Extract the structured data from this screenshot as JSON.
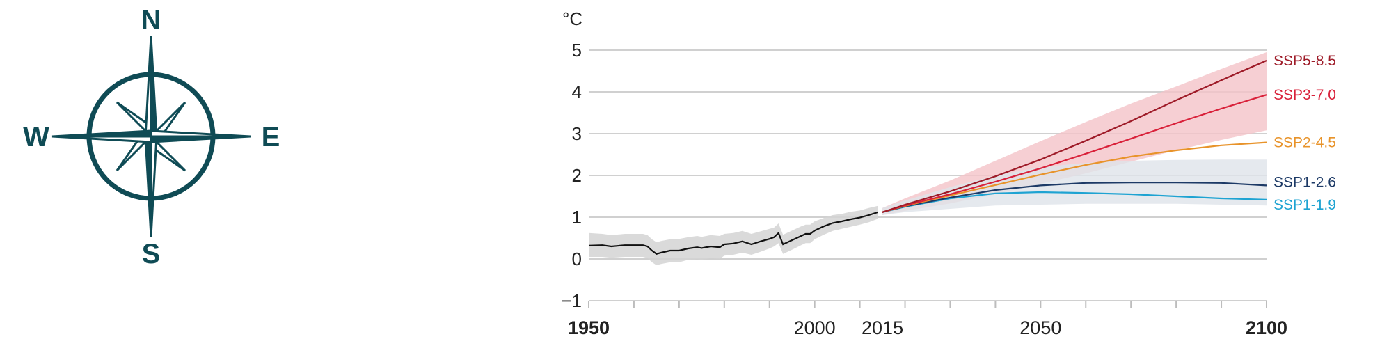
{
  "compass": {
    "north": "N",
    "south": "S",
    "east": "E",
    "west": "W",
    "icon": "compass-rose-icon",
    "color": "#0f4b55"
  },
  "chart_data": {
    "type": "line",
    "title": "",
    "xlabel": "",
    "ylabel": "°C",
    "xlim": [
      1950,
      2100
    ],
    "ylim": [
      -1,
      5
    ],
    "grid": true,
    "y_ticks": [
      5,
      4,
      3,
      2,
      1,
      0,
      -1
    ],
    "y_tick_labels": [
      "5",
      "4",
      "3",
      "2",
      "1",
      "0",
      "−1"
    ],
    "x_ticks": [
      1950,
      2000,
      2015,
      2050,
      2100
    ],
    "x_tick_labels": [
      "1950",
      "2000",
      "2015",
      "2050",
      "2100"
    ],
    "historical": {
      "name": "",
      "color": "#111111",
      "band_color": "#d3d3d3",
      "x": [
        1950,
        1953,
        1955,
        1958,
        1960,
        1962,
        1963,
        1964,
        1965,
        1966,
        1968,
        1970,
        1972,
        1974,
        1975,
        1977,
        1979,
        1980,
        1982,
        1984,
        1986,
        1988,
        1990,
        1991,
        1992,
        1993,
        1995,
        1997,
        1998,
        1999,
        2000,
        2002,
        2004,
        2006,
        2008,
        2010,
        2012,
        2014
      ],
      "values": [
        0.32,
        0.33,
        0.3,
        0.33,
        0.33,
        0.33,
        0.3,
        0.2,
        0.12,
        0.15,
        0.2,
        0.2,
        0.25,
        0.28,
        0.26,
        0.3,
        0.28,
        0.35,
        0.37,
        0.42,
        0.35,
        0.42,
        0.48,
        0.52,
        0.62,
        0.35,
        0.45,
        0.55,
        0.6,
        0.6,
        0.68,
        0.78,
        0.86,
        0.9,
        0.95,
        0.99,
        1.05,
        1.12
      ],
      "band_lower": [
        0.05,
        0.05,
        0.03,
        0.05,
        0.05,
        0.05,
        0.02,
        -0.08,
        -0.15,
        -0.12,
        -0.08,
        -0.08,
        -0.02,
        0.0,
        -0.02,
        0.02,
        0.0,
        0.08,
        0.1,
        0.15,
        0.1,
        0.17,
        0.25,
        0.3,
        0.38,
        0.12,
        0.22,
        0.33,
        0.38,
        0.38,
        0.47,
        0.58,
        0.67,
        0.72,
        0.77,
        0.82,
        0.88,
        0.96
      ],
      "band_upper": [
        0.62,
        0.6,
        0.57,
        0.6,
        0.6,
        0.6,
        0.57,
        0.47,
        0.4,
        0.43,
        0.47,
        0.48,
        0.52,
        0.55,
        0.53,
        0.57,
        0.55,
        0.6,
        0.62,
        0.67,
        0.6,
        0.66,
        0.72,
        0.75,
        0.85,
        0.58,
        0.68,
        0.78,
        0.82,
        0.82,
        0.9,
        0.98,
        1.05,
        1.08,
        1.13,
        1.16,
        1.22,
        1.27
      ]
    },
    "x_projection": [
      2015,
      2020,
      2030,
      2040,
      2050,
      2060,
      2070,
      2080,
      2090,
      2100
    ],
    "series": [
      {
        "name": "SSP5-8.5",
        "color": "#9e1b28",
        "values": [
          1.12,
          1.3,
          1.62,
          1.98,
          2.38,
          2.83,
          3.3,
          3.8,
          4.28,
          4.75
        ]
      },
      {
        "name": "SSP3-7.0",
        "color": "#d9213a",
        "values": [
          1.12,
          1.28,
          1.55,
          1.85,
          2.17,
          2.52,
          2.88,
          3.25,
          3.6,
          3.93
        ]
      },
      {
        "name": "SSP2-4.5",
        "color": "#e8932a",
        "values": [
          1.12,
          1.27,
          1.52,
          1.77,
          2.02,
          2.25,
          2.45,
          2.6,
          2.72,
          2.79
        ]
      },
      {
        "name": "SSP1-2.6",
        "color": "#1d3a66",
        "values": [
          1.12,
          1.26,
          1.47,
          1.65,
          1.76,
          1.82,
          1.83,
          1.83,
          1.82,
          1.76
        ]
      },
      {
        "name": "SSP1-1.9",
        "color": "#1ea3d2",
        "values": [
          1.12,
          1.25,
          1.45,
          1.57,
          1.6,
          1.58,
          1.55,
          1.5,
          1.45,
          1.42
        ]
      }
    ],
    "bands": [
      {
        "for": "SSP3-7.0",
        "color": "#f4c3c8",
        "lower": [
          1.05,
          1.15,
          1.33,
          1.55,
          1.8,
          2.05,
          2.33,
          2.6,
          2.85,
          3.08
        ],
        "upper": [
          1.22,
          1.45,
          1.88,
          2.35,
          2.82,
          3.28,
          3.72,
          4.13,
          4.55,
          4.95
        ]
      },
      {
        "for": "SSP1-2.6",
        "color": "#dfe3ea",
        "lower": [
          1.05,
          1.12,
          1.2,
          1.28,
          1.3,
          1.32,
          1.32,
          1.32,
          1.3,
          1.28
        ],
        "upper": [
          1.22,
          1.4,
          1.72,
          2.0,
          2.2,
          2.3,
          2.35,
          2.37,
          2.38,
          2.38
        ]
      }
    ]
  }
}
